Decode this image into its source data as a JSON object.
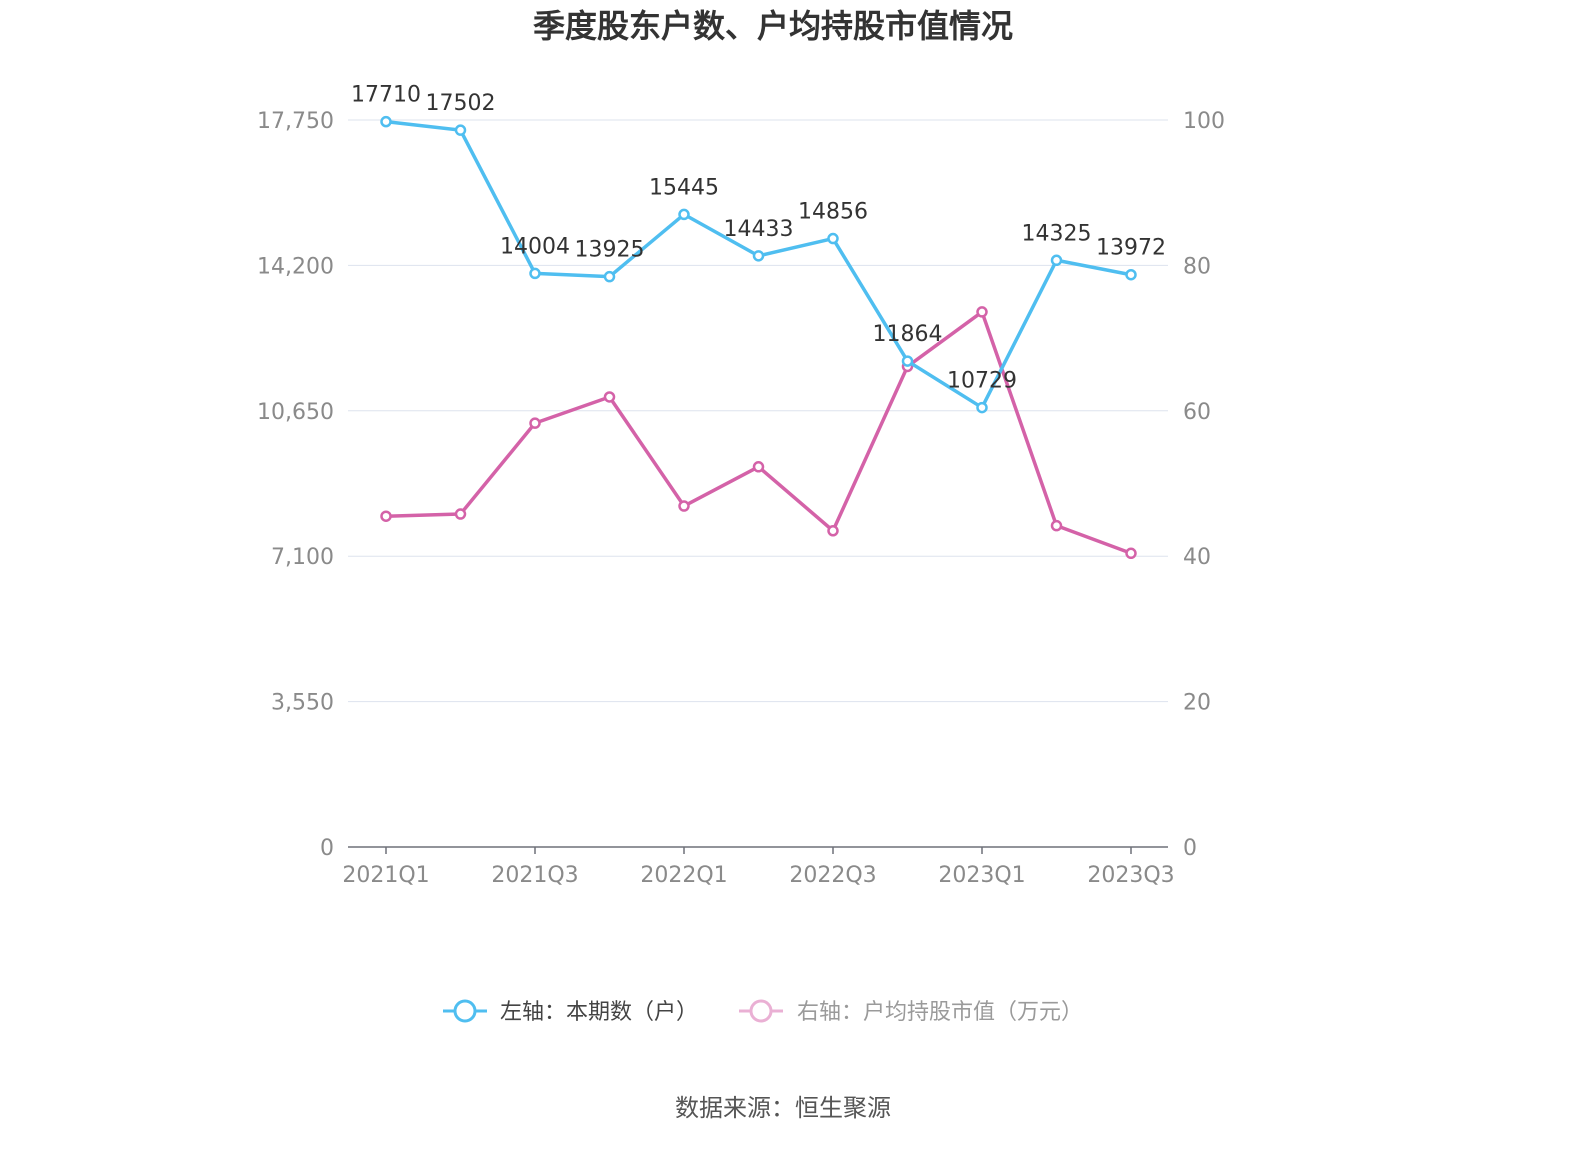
{
  "chart_data": {
    "type": "line",
    "title": "季度股东户数、户均持股市值情况",
    "categories": [
      "2021Q1",
      "2021Q2",
      "2021Q3",
      "2021Q4",
      "2022Q1",
      "2022Q2",
      "2022Q3",
      "2022Q4",
      "2023Q1",
      "2023Q2",
      "2023Q3"
    ],
    "x_tick_labels": [
      "2021Q1",
      "2021Q3",
      "2022Q1",
      "2022Q3",
      "2023Q1",
      "2023Q3"
    ],
    "left_axis": {
      "ylim": [
        0,
        17750
      ],
      "ticks": [
        0,
        3550,
        7100,
        10650,
        14200,
        17750
      ],
      "tick_labels": [
        "0",
        "3,550",
        "7,100",
        "10,650",
        "14,200",
        "17,750"
      ]
    },
    "right_axis": {
      "ylim": [
        0,
        100
      ],
      "ticks": [
        0,
        20,
        40,
        60,
        80,
        100
      ],
      "tick_labels": [
        "0",
        "20",
        "40",
        "60",
        "80",
        "100"
      ]
    },
    "series": [
      {
        "name": "左轴：本期数（户）",
        "axis": "left",
        "color": "#4fbef0",
        "values": [
          17710,
          17502,
          14004,
          13925,
          15445,
          14433,
          14856,
          11864,
          10729,
          14325,
          13972
        ],
        "labels": [
          "17710",
          "17502",
          "14004",
          "13925",
          "15445",
          "14433",
          "14856",
          "11864",
          "10729",
          "14325",
          "13972"
        ]
      },
      {
        "name": "右轴：户均持股市值（万元）",
        "axis": "right",
        "color": "#d462a8",
        "values": [
          45.5,
          45.8,
          58.3,
          61.9,
          46.9,
          52.3,
          43.5,
          66.1,
          73.6,
          44.2,
          40.4
        ]
      }
    ],
    "grid": true,
    "legend_position": "bottom"
  },
  "legend": {
    "left_label": "左轴：本期数（户）",
    "right_label": "右轴：户均持股市值（万元）"
  },
  "source": "数据来源：恒生聚源"
}
